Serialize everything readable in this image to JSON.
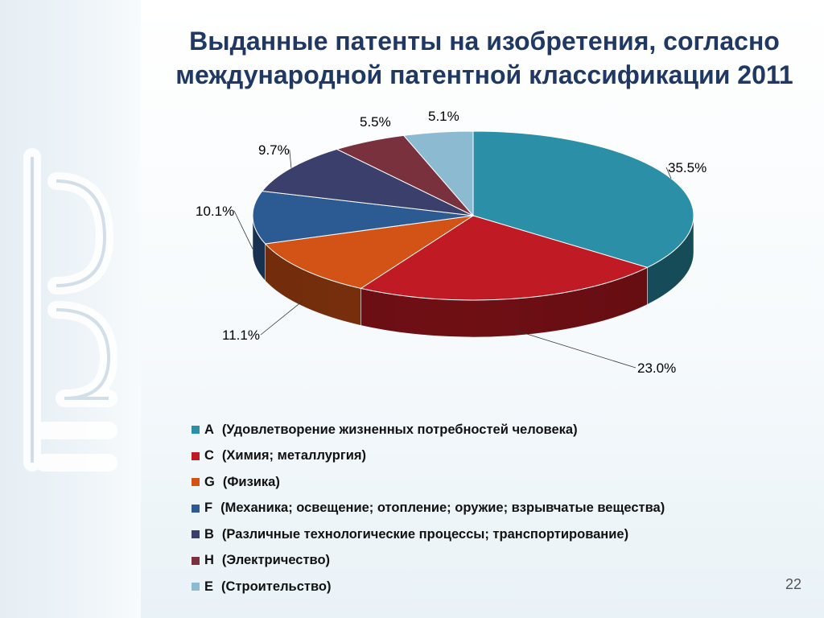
{
  "slide": {
    "title_line1": "Выданные патенты на изобретения, согласно",
    "title_line2": "международной патентной классификации 2011",
    "page_number": "22"
  },
  "watermark": {
    "icon": "eapo-logo-watermark"
  },
  "chart_data": {
    "type": "pie",
    "style": "3d",
    "title": "",
    "categories": [
      "A  (Удовлетворение жизненных потребностей человека)",
      "C  (Химия; металлургия)",
      "G  (Физика)",
      "F  (Механика; освещение; отопление; оружие; взрывчатые вещества)",
      "B  (Различные технологические процессы; транспортирование)",
      "H  (Электричество)",
      "E  (Строительство)"
    ],
    "legend": [
      {
        "code": "A",
        "text": "(Удовлетворение жизненных потребностей человека)"
      },
      {
        "code": "C",
        "text": "(Химия; металлургия)"
      },
      {
        "code": "G",
        "text": "(Физика)"
      },
      {
        "code": "F",
        "text": "(Механика; освещение; отопление; оружие; взрывчатые вещества)"
      },
      {
        "code": "B",
        "text": "(Различные технологические процессы; транспортирование)"
      },
      {
        "code": "H",
        "text": "(Электричество)"
      },
      {
        "code": "E",
        "text": "(Строительство)"
      }
    ],
    "values": [
      35.5,
      23.0,
      11.1,
      10.1,
      9.7,
      5.5,
      5.1
    ],
    "data_labels": [
      "35.5%",
      "23.0%",
      "11.1%",
      "10.1%",
      "9.7%",
      "5.5%",
      "5.1%"
    ],
    "colors": [
      "#2a8fa7",
      "#c01a24",
      "#d35215",
      "#2c5a93",
      "#3b3f6b",
      "#79313e",
      "#8cbad0"
    ],
    "legend_position": "bottom"
  }
}
